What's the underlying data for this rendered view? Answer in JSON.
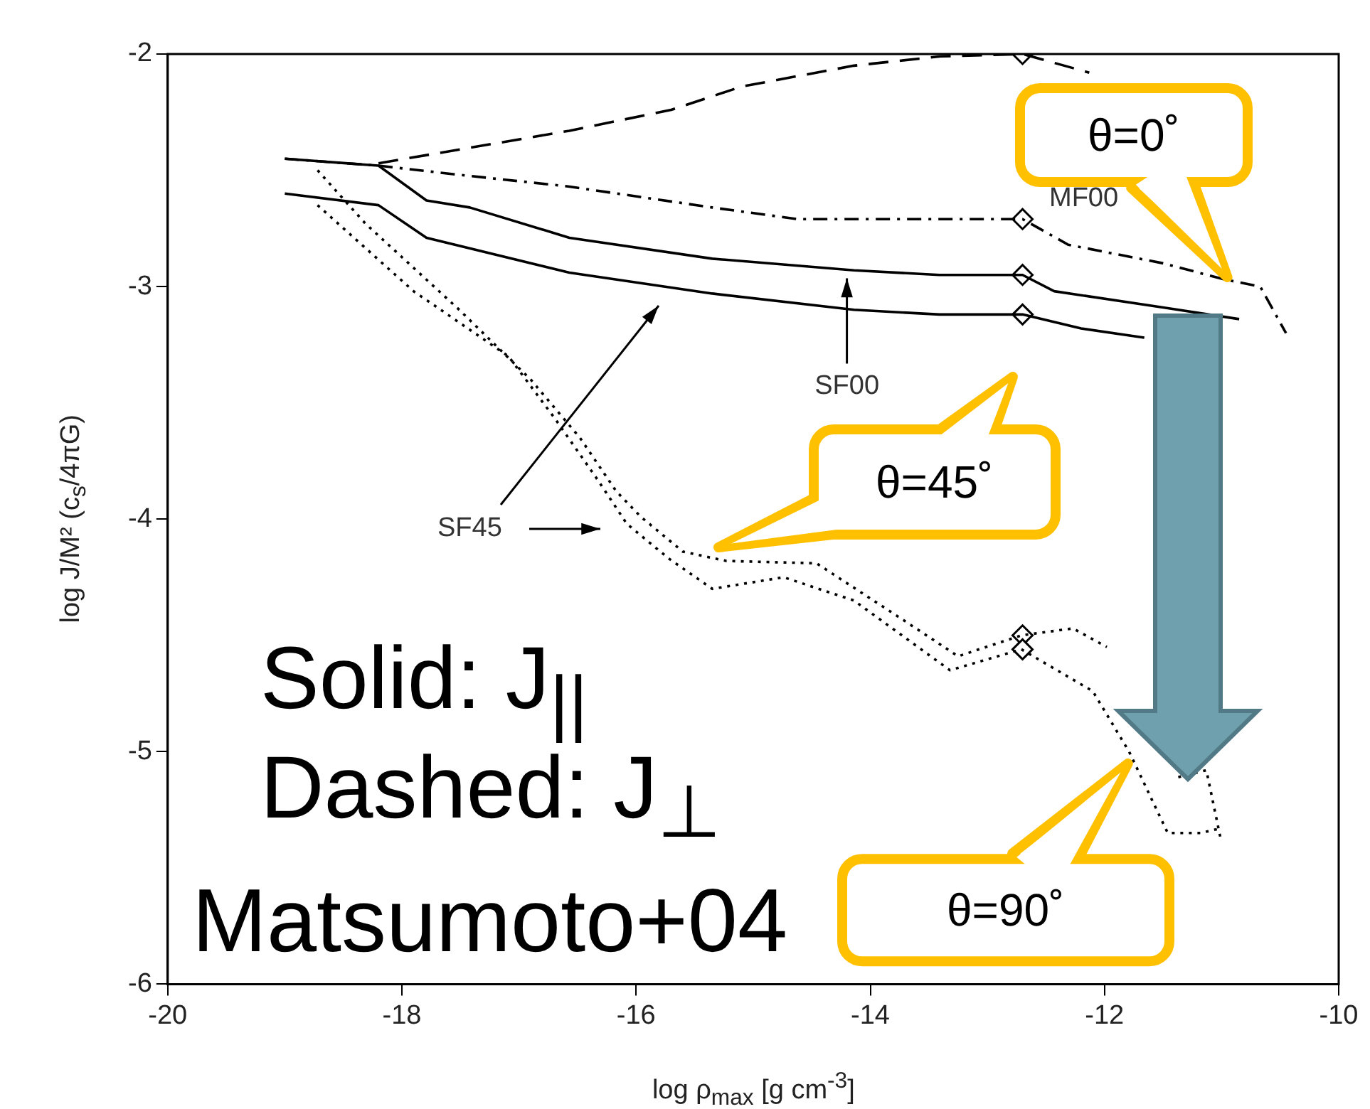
{
  "chart_data": {
    "type": "line",
    "xlabel": "log ρ$_{max}$ [g cm$^{-3}$]",
    "ylabel": "log J/M² (c$_{s}$/4πG)",
    "xlim": [
      -20,
      -10
    ],
    "xticks": [
      -20,
      -18,
      -16,
      -14,
      -12,
      -10
    ],
    "ylim": [
      -6,
      -2
    ],
    "yticks": [
      -6,
      -5,
      -4,
      -3,
      -2
    ],
    "grid": false,
    "legend": false,
    "marker": "none",
    "series": [
      {
        "color": "#000000",
        "line_style": "dashed",
        "x": [
          -18.2,
          -17.5,
          -16.57,
          -15.7,
          -15.1,
          -14.14,
          -13.4,
          -12.7,
          -12.13
        ],
        "values": [
          -2.47,
          -2.41,
          -2.33,
          -2.24,
          -2.14,
          -2.05,
          -2.01,
          -2.0,
          -2.08
        ]
      },
      {
        "color": "#000000",
        "line_style": "dashdot",
        "x": [
          -19,
          -18.2,
          -17.5,
          -16.57,
          -15.35,
          -14.62,
          -13.41,
          -12.7,
          -12.31,
          -11.5,
          -10.97,
          -10.67,
          -10.45
        ],
        "values": [
          -2.45,
          -2.48,
          -2.52,
          -2.57,
          -2.66,
          -2.71,
          -2.71,
          -2.71,
          -2.82,
          -2.9,
          -2.97,
          -3.0,
          -3.2
        ]
      },
      {
        "color": "#000000",
        "line_style": "solid",
        "x": [
          -19,
          -18.2,
          -17.79,
          -17.42,
          -16.57,
          -15.35,
          -14.14,
          -13.41,
          -12.7,
          -12.43,
          -11.5,
          -10.85
        ],
        "values": [
          -2.45,
          -2.48,
          -2.63,
          -2.66,
          -2.79,
          -2.88,
          -2.93,
          -2.95,
          -2.95,
          -3.02,
          -3.09,
          -3.14
        ]
      },
      {
        "color": "#000000",
        "line_style": "solid",
        "x": [
          -19,
          -18.2,
          -17.79,
          -16.57,
          -15.35,
          -14.14,
          -13.41,
          -12.7,
          -12.2,
          -11.66
        ],
        "values": [
          -2.6,
          -2.65,
          -2.79,
          -2.94,
          -3.03,
          -3.1,
          -3.12,
          -3.12,
          -3.18,
          -3.22
        ]
      },
      {
        "color": "#000000",
        "line_style": "dotted",
        "x": [
          -18.72,
          -18.31,
          -17.51,
          -16.9,
          -16.48,
          -16.17,
          -15.96,
          -15.6,
          -15.23,
          -14.46,
          -13.73,
          -13.25,
          -12.71,
          -12.27,
          -11.98,
          -11.7,
          -11.37,
          -11.13,
          -11.01
        ],
        "values": [
          -2.5,
          -2.73,
          -3.1,
          -3.4,
          -3.65,
          -3.88,
          -3.99,
          -4.14,
          -4.18,
          -4.19,
          -4.43,
          -4.59,
          -4.5,
          -4.47,
          -4.55,
          null,
          -5.11,
          -5.08,
          -5.37
        ]
      },
      {
        "color": "#000000",
        "line_style": "dotted",
        "x": [
          -18.72,
          -17.9,
          -17.09,
          -16.69,
          -16.33,
          -16.08,
          -15.72,
          -15.35,
          -14.74,
          -14.14,
          -13.32,
          -12.71,
          -12.1,
          -11.79,
          -11.46,
          -11.18,
          -11.01
        ],
        "values": [
          -2.65,
          -3.02,
          -3.3,
          -3.57,
          -3.83,
          -4.02,
          -4.17,
          -4.3,
          -4.25,
          -4.35,
          -4.65,
          -4.56,
          -4.74,
          -5.0,
          -5.35,
          -5.35,
          -5.33
        ]
      },
      {
        "type": "scatter",
        "color": "#000000",
        "marker": "diamond",
        "x": [
          -12.7,
          -12.7,
          -12.7,
          -12.7,
          -12.7,
          -12.7
        ],
        "values": [
          -2.0,
          -2.71,
          -2.95,
          -3.12,
          -4.5,
          -4.56
        ]
      }
    ],
    "annotations": [
      "MF00",
      {
        "text": "SF00",
        "x": -14.2,
        "y": -2.94
      },
      "SF45",
      {
        "text": "θ=0˚",
        "x": -10.95,
        "y": -2.96
      },
      "θ=45˚",
      {
        "text": "θ=90˚",
        "x": -11.8,
        "y": -5.05
      },
      "Solid: J$_{||}$",
      "Dashed: J$_{⊥}$",
      "Matsumoto+04"
    ]
  }
}
